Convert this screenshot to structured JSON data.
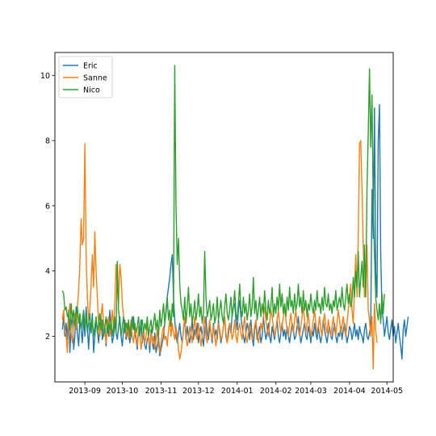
{
  "chart_data": {
    "type": "line",
    "title": "",
    "xlabel": "",
    "ylabel": "",
    "x_range": [
      "2013-08-08",
      "2014-05-06"
    ],
    "ylim": [
      0.6,
      10.7
    ],
    "x_ticks": [
      "2013-09",
      "2013-10",
      "2013-11",
      "2013-12",
      "2014-01",
      "2014-02",
      "2014-03",
      "2014-04",
      "2014-05"
    ],
    "x_tick_dates": [
      "2013-09-01",
      "2013-10-01",
      "2013-11-01",
      "2013-12-01",
      "2014-01-01",
      "2014-02-01",
      "2014-03-01",
      "2014-04-01",
      "2014-05-01"
    ],
    "y_ticks": [
      2,
      4,
      6,
      8,
      10
    ],
    "grid": false,
    "legend_position": "top-left",
    "x_start": "2013-08-14",
    "x_step_days": 1,
    "series": [
      {
        "name": "Eric",
        "color": "#1f77b4",
        "values": [
          2.2,
          2.6,
          2.0,
          2.4,
          1.9,
          2.8,
          1.5,
          2.3,
          2.7,
          1.6,
          2.0,
          2.9,
          2.1,
          1.7,
          2.5,
          2.2,
          1.8,
          2.6,
          2.0,
          2.9,
          2.3,
          1.6,
          2.4,
          2.1,
          2.7,
          1.5,
          2.0,
          2.5,
          2.2,
          1.8,
          2.4,
          2.6,
          1.9,
          2.1,
          2.3,
          1.7,
          2.5,
          2.0,
          2.8,
          2.2,
          1.8,
          2.0,
          2.4,
          2.1,
          1.9,
          2.3,
          2.6,
          2.0,
          1.7,
          2.2,
          2.5,
          1.9,
          2.1,
          2.4,
          1.8,
          2.0,
          2.3,
          2.6,
          2.1,
          1.9,
          1.6,
          2.2,
          2.0,
          2.5,
          1.8,
          2.1,
          1.7,
          1.6,
          1.9,
          2.0,
          1.5,
          2.2,
          1.8,
          1.6,
          2.1,
          1.5,
          1.7,
          2.0,
          1.4,
          1.6,
          1.8,
          2.0,
          2.4,
          2.8,
          3.2,
          3.5,
          3.8,
          4.2,
          4.5,
          3.2,
          2.5,
          2.0,
          1.8,
          2.1,
          2.4,
          2.0,
          1.8,
          2.2,
          2.6,
          1.9,
          2.3,
          2.0,
          1.8,
          2.1,
          2.5,
          1.9,
          2.2,
          2.0,
          2.4,
          1.8,
          2.1,
          2.3,
          2.0,
          1.7,
          2.2,
          2.6,
          2.0,
          1.9,
          2.3,
          2.1,
          1.8,
          2.4,
          2.0,
          2.2,
          1.9,
          2.5,
          2.1,
          1.8,
          2.0,
          2.3,
          2.6,
          2.0,
          1.8,
          2.2,
          2.4,
          2.1,
          2.7,
          2.9,
          3.0,
          2.5,
          2.2,
          2.8,
          3.1,
          2.6,
          2.3,
          2.0,
          1.8,
          2.1,
          2.4,
          2.2,
          1.9,
          2.5,
          2.0,
          1.7,
          2.2,
          2.4,
          1.9,
          2.1,
          2.3,
          1.8,
          2.0,
          2.6,
          2.2,
          1.9,
          2.1,
          2.4,
          2.0,
          1.8,
          2.3,
          2.1,
          1.9,
          2.2,
          2.5,
          2.0,
          1.8,
          2.1,
          2.4,
          2.0,
          2.2,
          1.9,
          2.3,
          2.0,
          1.8,
          2.1,
          2.4,
          2.2,
          1.9,
          2.0,
          2.3,
          2.6,
          2.1,
          1.8,
          2.0,
          2.2,
          2.4,
          2.0,
          1.9,
          2.3,
          2.1,
          1.8,
          2.2,
          2.0,
          2.4,
          2.1,
          1.9,
          2.3,
          2.0,
          1.8,
          2.1,
          2.5,
          2.2,
          2.0,
          1.8,
          2.1,
          2.3,
          2.0,
          1.9,
          2.2,
          2.4,
          2.0,
          1.8,
          2.1,
          2.0,
          2.3,
          1.9,
          2.2,
          2.4,
          2.1,
          1.8,
          2.0,
          2.3,
          2.2,
          1.9,
          2.1,
          2.4,
          2.0,
          2.2,
          1.9,
          2.3,
          2.1,
          2.0,
          1.8,
          2.2,
          2.4,
          2.0,
          1.9,
          2.1,
          2.3,
          6.5,
          5.0,
          9.0,
          4.0,
          3.2,
          8.0,
          9.1,
          4.5,
          2.8,
          2.5,
          2.0,
          2.3,
          2.6,
          2.1,
          1.9,
          2.2,
          2.5,
          2.0,
          2.3,
          1.8,
          2.1,
          2.4,
          2.0,
          1.7,
          1.3,
          2.2,
          2.5,
          2.0,
          2.3,
          2.6
        ]
      },
      {
        "name": "Sanne",
        "color": "#ff7f0e",
        "values": [
          2.5,
          2.8,
          2.2,
          2.0,
          1.5,
          2.6,
          3.0,
          2.1,
          1.8,
          2.4,
          2.7,
          2.2,
          2.9,
          3.4,
          4.2,
          5.6,
          4.8,
          5.0,
          7.9,
          4.5,
          3.2,
          2.5,
          2.8,
          3.6,
          4.5,
          3.5,
          5.2,
          4.0,
          3.2,
          2.4,
          2.0,
          2.6,
          3.0,
          2.4,
          2.1,
          1.8,
          2.3,
          2.6,
          2.0,
          2.4,
          2.8,
          2.2,
          3.0,
          4.2,
          3.5,
          3.0,
          4.2,
          3.8,
          3.0,
          2.6,
          2.2,
          2.0,
          2.4,
          1.9,
          2.1,
          2.5,
          2.0,
          1.8,
          2.2,
          2.0,
          1.7,
          2.3,
          2.1,
          1.6,
          1.9,
          2.2,
          1.8,
          2.0,
          2.4,
          1.9,
          1.7,
          2.1,
          1.8,
          2.0,
          1.6,
          1.9,
          2.2,
          1.7,
          1.5,
          1.8,
          2.1,
          2.3,
          1.9,
          2.0,
          1.7,
          2.2,
          2.5,
          2.0,
          2.4,
          2.1,
          1.9,
          2.3,
          2.0,
          1.6,
          1.3,
          1.5,
          1.8,
          2.2,
          2.6,
          2.0,
          1.7,
          1.9,
          2.3,
          2.1,
          1.8,
          2.2,
          2.6,
          2.0,
          1.9,
          2.4,
          2.1,
          1.7,
          2.0,
          2.3,
          2.6,
          2.0,
          1.8,
          2.2,
          2.5,
          2.1,
          1.9,
          2.3,
          2.0,
          1.7,
          2.1,
          2.4,
          2.2,
          1.9,
          2.0,
          2.3,
          2.6,
          2.1,
          1.8,
          2.0,
          2.4,
          2.2,
          1.9,
          2.1,
          2.5,
          2.0,
          1.8,
          2.2,
          2.4,
          2.1,
          1.9,
          2.3,
          2.6,
          2.0,
          1.8,
          2.1,
          2.4,
          2.2,
          1.9,
          2.0,
          2.3,
          2.5,
          2.1,
          1.8,
          2.0,
          2.4,
          2.2,
          2.6,
          2.9,
          2.5,
          2.2,
          2.0,
          2.4,
          2.8,
          2.6,
          2.3,
          2.0,
          2.2,
          2.5,
          2.8,
          2.4,
          2.1,
          2.3,
          2.6,
          2.9,
          2.5,
          2.2,
          2.0,
          2.4,
          2.7,
          2.3,
          2.1,
          2.5,
          2.8,
          2.4,
          2.2,
          2.0,
          2.3,
          2.6,
          2.9,
          2.5,
          2.1,
          2.4,
          2.7,
          2.3,
          2.0,
          2.2,
          2.5,
          2.8,
          2.4,
          2.1,
          2.3,
          2.6,
          2.2,
          2.0,
          2.4,
          2.7,
          2.3,
          2.1,
          2.5,
          2.2,
          2.0,
          2.3,
          2.6,
          2.2,
          2.0,
          2.4,
          2.8,
          2.5,
          2.1,
          2.3,
          2.6,
          2.2,
          2.0,
          2.4,
          2.8,
          3.2,
          3.6,
          2.8,
          2.4,
          3.5,
          4.5,
          3.2,
          5.0,
          7.9,
          8.0,
          6.5,
          4.8,
          3.2,
          3.5,
          4.8,
          2.8,
          2.5,
          2.0,
          2.6,
          1.0,
          3.0,
          2.2,
          1.8
        ]
      },
      {
        "name": "Nico",
        "color": "#2ca02c",
        "values": [
          3.4,
          3.3,
          2.8,
          2.9,
          2.6,
          2.7,
          2.2,
          3.0,
          2.5,
          2.8,
          2.3,
          2.6,
          2.9,
          2.4,
          2.7,
          2.2,
          2.5,
          2.8,
          2.3,
          2.6,
          2.1,
          2.4,
          2.7,
          2.2,
          2.5,
          2.0,
          2.3,
          2.6,
          2.1,
          2.4,
          2.7,
          2.2,
          2.5,
          2.0,
          2.3,
          2.6,
          2.1,
          2.4,
          2.2,
          2.5,
          2.0,
          2.3,
          2.6,
          2.1,
          4.3,
          2.8,
          2.4,
          2.0,
          2.3,
          2.6,
          2.1,
          2.4,
          2.2,
          2.5,
          2.0,
          2.3,
          2.6,
          2.2,
          2.4,
          2.1,
          2.3,
          2.6,
          2.0,
          2.3,
          2.5,
          2.1,
          2.4,
          2.2,
          2.6,
          2.0,
          2.3,
          2.5,
          2.1,
          2.4,
          2.7,
          2.2,
          2.5,
          2.0,
          2.8,
          2.3,
          2.6,
          3.0,
          2.4,
          2.7,
          3.2,
          2.5,
          2.8,
          2.3,
          3.0,
          2.6,
          10.3,
          6.0,
          4.2,
          5.0,
          3.6,
          3.0,
          2.8,
          2.5,
          3.2,
          2.4,
          2.9,
          3.5,
          2.6,
          3.0,
          2.4,
          2.7,
          3.1,
          2.5,
          2.8,
          3.3,
          2.6,
          2.9,
          2.4,
          2.7,
          4.6,
          3.2,
          2.6,
          2.8,
          3.1,
          2.5,
          2.7,
          3.0,
          2.4,
          2.6,
          3.2,
          2.5,
          2.8,
          3.1,
          2.6,
          2.4,
          2.9,
          3.3,
          2.7,
          2.5,
          2.8,
          3.2,
          2.6,
          2.9,
          3.4,
          2.7,
          2.5,
          3.0,
          3.6,
          2.8,
          2.6,
          3.2,
          2.7,
          3.0,
          2.5,
          2.8,
          3.3,
          2.6,
          2.9,
          3.8,
          2.7,
          3.1,
          2.5,
          2.8,
          3.2,
          2.6,
          3.0,
          2.7,
          3.4,
          2.8,
          2.5,
          3.1,
          2.7,
          2.9,
          3.5,
          2.6,
          3.0,
          2.7,
          3.2,
          2.8,
          3.6,
          2.9,
          3.3,
          2.7,
          3.0,
          2.6,
          3.2,
          2.8,
          3.5,
          2.9,
          3.1,
          2.7,
          3.3,
          2.8,
          3.0,
          3.6,
          2.9,
          3.2,
          2.7,
          3.4,
          2.8,
          3.1,
          2.6,
          3.0,
          2.8,
          3.3,
          2.9,
          2.7,
          3.1,
          2.8,
          3.4,
          2.9,
          3.0,
          2.7,
          3.2,
          2.8,
          3.5,
          3.0,
          2.9,
          3.3,
          2.8,
          3.0,
          2.7,
          3.1,
          2.9,
          3.4,
          2.8,
          3.0,
          3.2,
          2.9,
          3.5,
          3.0,
          2.8,
          3.2,
          3.6,
          3.0,
          3.3,
          2.9,
          3.1,
          3.8,
          3.2,
          4.0,
          3.5,
          4.6,
          3.2,
          3.8,
          4.3,
          3.5,
          4.8,
          3.2,
          6.5,
          8.2,
          10.2,
          7.8,
          9.4,
          6.0,
          4.5,
          3.2,
          2.8,
          2.5,
          3.0,
          2.4,
          3.3,
          2.7,
          3.3
        ]
      }
    ]
  }
}
